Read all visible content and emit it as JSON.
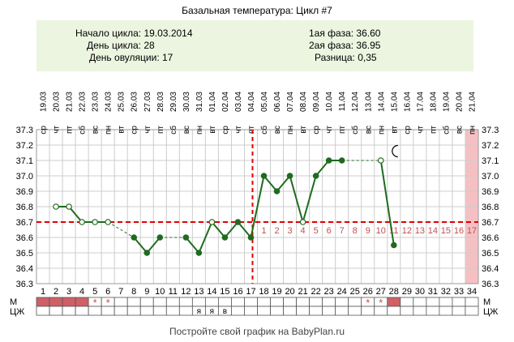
{
  "title": "Базальная температура: Цикл #7",
  "info": {
    "start_label": "Начало цикла: 19.03.2014",
    "day_label": "День цикла: 28",
    "ovulation_label": "День овуляции: 17",
    "phase1_label": "1ая фаза: 36.60",
    "phase2_label": "2ая фаза: 36.95",
    "diff_label": "Разница: 0,35"
  },
  "footer": "Постройте свой график на BabyPlan.ru",
  "colors": {
    "line": "#1f6b1f",
    "coverline": "#e00000",
    "period": "#d06068",
    "pink_column": "#f5c0c4",
    "grid": "#cccccc",
    "info_bg": "#ecf5e0"
  },
  "chart_data": {
    "type": "line",
    "ylim": [
      36.3,
      37.3
    ],
    "yticks": [
      "36.3",
      "36.4",
      "36.5",
      "36.6",
      "36.7",
      "36.8",
      "36.9",
      "37.0",
      "37.1",
      "37.2",
      "37.3"
    ],
    "cycle_days": [
      "1",
      "2",
      "3",
      "4",
      "5",
      "6",
      "7",
      "8",
      "9",
      "10",
      "11",
      "12",
      "13",
      "14",
      "15",
      "16",
      "17",
      "18",
      "19",
      "20",
      "21",
      "22",
      "23",
      "24",
      "25",
      "26",
      "27",
      "28",
      "29",
      "30",
      "31",
      "32",
      "33",
      "34"
    ],
    "dates": [
      "19.03",
      "20.03",
      "21.03",
      "22.03",
      "23.03",
      "24.03",
      "25.03",
      "26.03",
      "27.03",
      "28.03",
      "29.03",
      "30.03",
      "31.03",
      "01.04",
      "02.04",
      "03.04",
      "04.04",
      "05.04",
      "06.04",
      "07.04",
      "08.04",
      "09.04",
      "10.04",
      "11.04",
      "12.04",
      "13.04",
      "14.04",
      "15.04",
      "16.04",
      "17.04",
      "18.04",
      "19.04",
      "20.04",
      "21.04"
    ],
    "weekdays": [
      "ср",
      "чт",
      "пт",
      "сб",
      "вс",
      "пн",
      "вт",
      "ср",
      "чт",
      "пт",
      "сб",
      "вс",
      "пн",
      "вт",
      "ср",
      "чт",
      "пт",
      "сб",
      "вс",
      "пн",
      "вт",
      "ср",
      "чт",
      "пт",
      "сб",
      "вс",
      "пн",
      "вт",
      "ср",
      "чт",
      "пт",
      "сб",
      "вс",
      "пн"
    ],
    "temperatures": [
      null,
      36.8,
      36.8,
      36.7,
      36.7,
      36.7,
      null,
      36.6,
      36.5,
      36.6,
      null,
      36.6,
      36.5,
      36.7,
      36.6,
      36.7,
      36.6,
      37.0,
      36.9,
      37.0,
      36.7,
      37.0,
      37.1,
      37.1,
      null,
      null,
      37.1,
      36.55,
      null,
      null,
      null,
      null,
      null,
      null
    ],
    "open_markers": [
      2,
      3,
      4,
      5,
      6,
      14,
      21,
      27
    ],
    "dashed_segments": [
      [
        6,
        8
      ],
      [
        10,
        12
      ],
      [
        24,
        27
      ]
    ],
    "coverline": 36.7,
    "ovulation_day": 17,
    "luteal_labels": [
      "1",
      "2",
      "3",
      "4",
      "5",
      "6",
      "7",
      "8",
      "9",
      "10",
      "11",
      "12",
      "13",
      "14",
      "15",
      "16",
      "17"
    ],
    "luteal_start_day": 18,
    "pink_column_day": 34,
    "moon_day": 28,
    "row_m_label": "М",
    "row_czh_label": "ЦЖ",
    "period_days": [
      1,
      2,
      3,
      4,
      28
    ],
    "spotting_days": [
      5,
      6,
      26,
      27
    ],
    "spotting_symbol": "*",
    "czh_marks": [
      {
        "day": 13,
        "text": "я"
      },
      {
        "day": 14,
        "text": "я"
      },
      {
        "day": 15,
        "text": "в"
      }
    ]
  }
}
